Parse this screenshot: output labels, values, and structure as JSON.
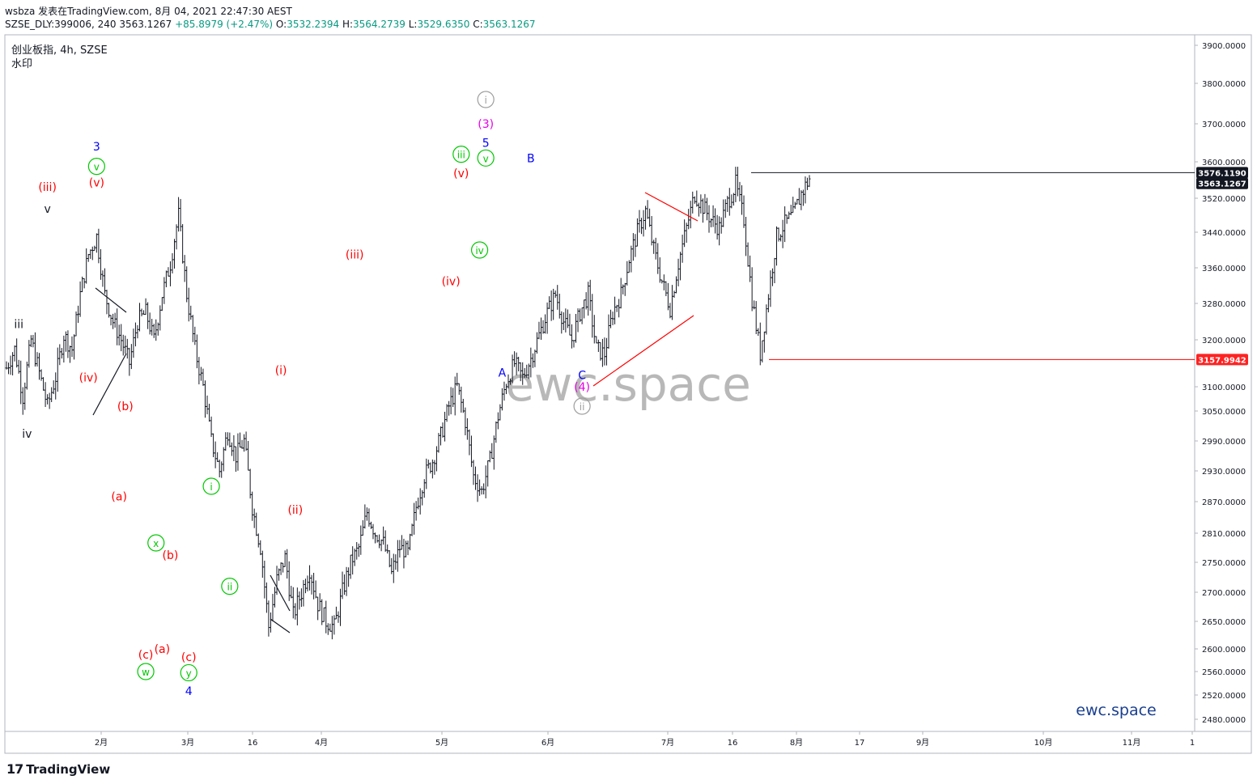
{
  "header": {
    "line1": "wsbza 发表在TradingView.com, 8月 04, 2021 22:47:30 AEST",
    "symbol": "SZSE_DLY:399006, 240",
    "last": "3563.1267",
    "change": "+85.8979 (+2.47%)",
    "o_label": "O:",
    "o_value": "3532.2394",
    "h_label": "H:",
    "h_value": "3564.2739",
    "l_label": "L:",
    "l_value": "3529.6350",
    "c_label": "C:",
    "c_value": "3563.1267"
  },
  "legend": {
    "title": "创业板指, 4h, SZSE",
    "subtitle": "水印"
  },
  "watermark": "ewc.space",
  "brand_text": "ewc.space",
  "footer": {
    "brand": "TradingView"
  },
  "colors": {
    "candle": "#131722",
    "red": "#ff0000",
    "green": "#00c800",
    "blue": "#0000ff",
    "magenta": "#e600e6",
    "grey": "#9e9e9e",
    "price_tag_dark": "#131722",
    "price_tag_red": "#ff2222"
  },
  "chart_data": {
    "type": "bar",
    "subtype": "ohlc",
    "title": "创业板指, 4h, SZSE",
    "x_ticks": [
      "2月",
      "3月",
      "16",
      "4月",
      "5月",
      "6月",
      "7月",
      "16",
      "8月",
      "17",
      "9月",
      "10月",
      "11月",
      "1"
    ],
    "y_ticks": [
      "3900.0000",
      "3800.0000",
      "3700.0000",
      "3600.0000",
      "3520.0000",
      "3440.0000",
      "3360.0000",
      "3280.0000",
      "3200.0000",
      "3100.0000",
      "3050.0000",
      "2990.0000",
      "2930.0000",
      "2870.0000",
      "2810.0000",
      "2750.0000",
      "2700.0000",
      "2650.0000",
      "2600.0000",
      "2560.0000",
      "2520.0000",
      "2480.0000"
    ],
    "y_scale": "log",
    "ylim": [
      2440,
      3950
    ],
    "path_points": [
      [
        0,
        3140
      ],
      [
        4,
        3180
      ],
      [
        8,
        3080
      ],
      [
        12,
        3200
      ],
      [
        16,
        3130
      ],
      [
        20,
        3060
      ],
      [
        24,
        3120
      ],
      [
        28,
        3210
      ],
      [
        32,
        3180
      ],
      [
        36,
        3300
      ],
      [
        40,
        3390
      ],
      [
        44,
        3430
      ],
      [
        48,
        3300
      ],
      [
        52,
        3240
      ],
      [
        56,
        3200
      ],
      [
        60,
        3150
      ],
      [
        64,
        3240
      ],
      [
        68,
        3260
      ],
      [
        72,
        3200
      ],
      [
        76,
        3300
      ],
      [
        80,
        3370
      ],
      [
        84,
        3480
      ],
      [
        88,
        3300
      ],
      [
        92,
        3180
      ],
      [
        96,
        3100
      ],
      [
        100,
        2990
      ],
      [
        104,
        2930
      ],
      [
        108,
        3010
      ],
      [
        112,
        2960
      ],
      [
        116,
        2990
      ],
      [
        120,
        2860
      ],
      [
        124,
        2780
      ],
      [
        128,
        2640
      ],
      [
        132,
        2720
      ],
      [
        136,
        2760
      ],
      [
        140,
        2660
      ],
      [
        144,
        2700
      ],
      [
        148,
        2740
      ],
      [
        152,
        2680
      ],
      [
        156,
        2650
      ],
      [
        160,
        2640
      ],
      [
        164,
        2700
      ],
      [
        168,
        2750
      ],
      [
        172,
        2780
      ],
      [
        176,
        2850
      ],
      [
        180,
        2810
      ],
      [
        184,
        2790
      ],
      [
        188,
        2730
      ],
      [
        192,
        2780
      ],
      [
        196,
        2770
      ],
      [
        200,
        2860
      ],
      [
        204,
        2920
      ],
      [
        208,
        2950
      ],
      [
        212,
        3000
      ],
      [
        216,
        3060
      ],
      [
        220,
        3100
      ],
      [
        224,
        3030
      ],
      [
        228,
        2920
      ],
      [
        232,
        2890
      ],
      [
        236,
        2950
      ],
      [
        240,
        3040
      ],
      [
        244,
        3110
      ],
      [
        248,
        3150
      ],
      [
        252,
        3120
      ],
      [
        256,
        3160
      ],
      [
        260,
        3210
      ],
      [
        264,
        3260
      ],
      [
        268,
        3300
      ],
      [
        272,
        3240
      ],
      [
        276,
        3200
      ],
      [
        280,
        3260
      ],
      [
        284,
        3300
      ],
      [
        288,
        3180
      ],
      [
        292,
        3170
      ],
      [
        296,
        3260
      ],
      [
        300,
        3300
      ],
      [
        304,
        3380
      ],
      [
        308,
        3440
      ],
      [
        312,
        3490
      ],
      [
        316,
        3400
      ],
      [
        320,
        3330
      ],
      [
        324,
        3270
      ],
      [
        328,
        3370
      ],
      [
        332,
        3450
      ],
      [
        336,
        3530
      ],
      [
        340,
        3500
      ],
      [
        344,
        3470
      ],
      [
        348,
        3450
      ],
      [
        352,
        3510
      ],
      [
        356,
        3550
      ],
      [
        360,
        3470
      ],
      [
        364,
        3290
      ],
      [
        368,
        3170
      ],
      [
        372,
        3300
      ],
      [
        376,
        3430
      ],
      [
        380,
        3460
      ],
      [
        384,
        3480
      ],
      [
        388,
        3530
      ],
      [
        392,
        3563
      ]
    ],
    "horizontal_levels": [
      {
        "value": 3576.119,
        "label": "3576.1190",
        "tag": "price_tag_dark",
        "color": "#131722"
      },
      {
        "value": 3563.1267,
        "label": "3563.1267",
        "tag": "price_tag_dark",
        "color": "#131722",
        "no_line": true
      },
      {
        "value": 3157.9942,
        "label": "3157.9942",
        "tag": "price_tag_red",
        "color": "#ff0000"
      }
    ],
    "wave_labels": [
      {
        "text": "iii",
        "color": "black",
        "t": 6,
        "p": 3235
      },
      {
        "text": "v",
        "color": "black",
        "t": 20,
        "p": 3495
      },
      {
        "text": "(iii)",
        "color": "red",
        "t": 20,
        "p": 3545
      },
      {
        "text": "iv",
        "color": "black",
        "t": 10,
        "p": 3005
      },
      {
        "text": "(iv)",
        "color": "red",
        "t": 40,
        "p": 3120
      },
      {
        "text": "3",
        "color": "blue",
        "t": 44,
        "p": 3640
      },
      {
        "text": "v",
        "color": "green",
        "t": 44,
        "p": 3590,
        "circle": true
      },
      {
        "text": "(v)",
        "color": "red",
        "t": 44,
        "p": 3555
      },
      {
        "text": "(b)",
        "color": "red",
        "t": 58,
        "p": 3060
      },
      {
        "text": "(a)",
        "color": "red",
        "t": 55,
        "p": 2880
      },
      {
        "text": "x",
        "color": "green",
        "t": 73,
        "p": 2790,
        "circle": true
      },
      {
        "text": "(b)",
        "color": "red",
        "t": 80,
        "p": 2765
      },
      {
        "text": "(c)",
        "color": "red",
        "t": 68,
        "p": 2590
      },
      {
        "text": "w",
        "color": "green",
        "t": 68,
        "p": 2560,
        "circle": true
      },
      {
        "text": "(a)",
        "color": "red",
        "t": 76,
        "p": 2600
      },
      {
        "text": "(c)",
        "color": "red",
        "t": 89,
        "p": 2586
      },
      {
        "text": "y",
        "color": "green",
        "t": 89,
        "p": 2558,
        "circle": true
      },
      {
        "text": "4",
        "color": "blue",
        "t": 89,
        "p": 2527
      },
      {
        "text": "i",
        "color": "green",
        "t": 100,
        "p": 2900,
        "circle": true
      },
      {
        "text": "ii",
        "color": "green",
        "t": 109,
        "p": 2710,
        "circle": true
      },
      {
        "text": "(i)",
        "color": "red",
        "t": 134,
        "p": 3135
      },
      {
        "text": "(ii)",
        "color": "red",
        "t": 141,
        "p": 2855
      },
      {
        "text": "(iii)",
        "color": "red",
        "t": 170,
        "p": 3390
      },
      {
        "text": "(iv)",
        "color": "red",
        "t": 217,
        "p": 3330
      },
      {
        "text": "iii",
        "color": "green",
        "t": 222,
        "p": 3620,
        "circle": true
      },
      {
        "text": "(v)",
        "color": "red",
        "t": 222,
        "p": 3575
      },
      {
        "text": "iv",
        "color": "green",
        "t": 231,
        "p": 3400,
        "circle": true
      },
      {
        "text": "i",
        "color": "grey",
        "t": 234,
        "p": 3760,
        "circle": true
      },
      {
        "text": "(3)",
        "color": "magenta",
        "t": 234,
        "p": 3700
      },
      {
        "text": "5",
        "color": "blue",
        "t": 234,
        "p": 3650
      },
      {
        "text": "v",
        "color": "green",
        "t": 234,
        "p": 3610,
        "circle": true
      },
      {
        "text": "B",
        "color": "blue",
        "t": 256,
        "p": 3610
      },
      {
        "text": "A",
        "color": "blue",
        "t": 242,
        "p": 3130
      },
      {
        "text": "C",
        "color": "blue",
        "t": 281,
        "p": 3125
      },
      {
        "text": "(4)",
        "color": "magenta",
        "t": 281,
        "p": 3100
      },
      {
        "text": "ii",
        "color": "grey",
        "t": 281,
        "p": 3060,
        "circle": true
      }
    ]
  }
}
